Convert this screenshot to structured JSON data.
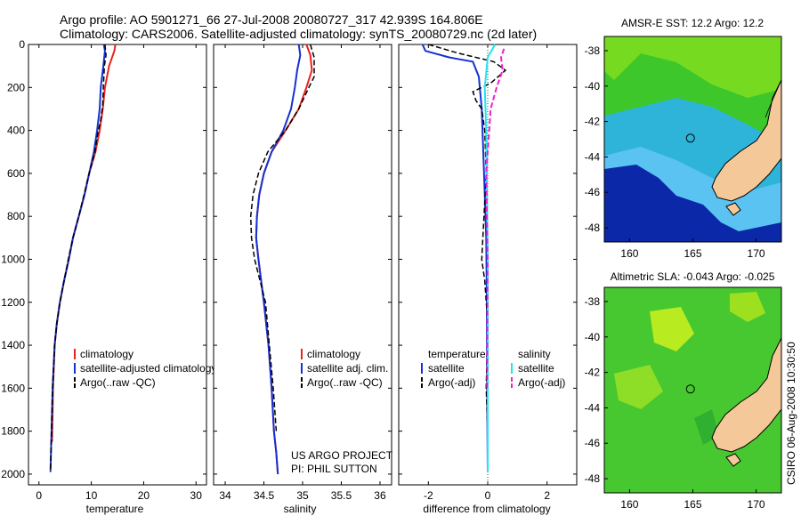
{
  "header": {
    "line1": "Argo profile: AO 5901271_66 27-Jul-2008 20080727_317 42.939S 164.806E",
    "line2": "Climatology: CARS2006. Satellite-adjusted climatology: synTS_20080729.nc (2d later)"
  },
  "colors": {
    "climatology": "#e8231e",
    "satellite": "#1432d2",
    "argo": "#000000",
    "sal_satellite": "#1ee6f0",
    "sal_argo": "#f01ed2",
    "land": "#f5c89a"
  },
  "chart_data": [
    {
      "id": "temperature",
      "type": "line",
      "xlabel": "temperature",
      "ylabel": "",
      "xlim": [
        -2,
        32
      ],
      "ylim": [
        2050,
        0
      ],
      "xticks": [
        0,
        10,
        20,
        30
      ],
      "xtick_labels": [
        "0",
        "10",
        "20",
        "30"
      ],
      "yticks": [
        0,
        200,
        400,
        600,
        800,
        1000,
        1200,
        1400,
        1600,
        1800,
        2000
      ],
      "ytick_labels": [
        "0",
        "200",
        "400",
        "600",
        "800",
        "1000",
        "1200",
        "1400",
        "1600",
        "1800",
        "2000"
      ],
      "legend": [
        "climatology",
        "satellite-adjusted climatology",
        "Argo(..raw -QC)"
      ],
      "legend_placement": "bottom-right",
      "series": [
        {
          "name": "climatology",
          "color_key": "climatology",
          "dash": false,
          "width": 2,
          "x": [
            14.6,
            14.4,
            13.4,
            12.6,
            12.2,
            11.6,
            10.8,
            9.6,
            8.7,
            7.6,
            6.5,
            5.7,
            4.8,
            4.0,
            3.4,
            3.0,
            2.7,
            2.5
          ],
          "y": [
            0,
            30,
            100,
            200,
            300,
            400,
            500,
            600,
            700,
            800,
            900,
            1000,
            1100,
            1200,
            1300,
            1400,
            1600,
            1850
          ]
        },
        {
          "name": "satellite-adjusted climatology",
          "color_key": "satellite",
          "dash": false,
          "width": 2,
          "x": [
            12.4,
            12.6,
            12.3,
            11.8,
            11.6,
            11.1,
            10.5,
            9.6,
            8.7,
            7.6,
            6.5,
            5.7,
            4.8,
            4.0,
            3.4,
            3.0,
            2.6,
            2.4,
            2.2
          ],
          "y": [
            0,
            30,
            100,
            200,
            300,
            400,
            500,
            600,
            700,
            800,
            900,
            1000,
            1100,
            1200,
            1300,
            1400,
            1600,
            1800,
            1990
          ]
        },
        {
          "name": "Argo(..raw -QC)",
          "color_key": "argo",
          "dash": true,
          "width": 1.5,
          "x": [
            12.6,
            12.8,
            12.5,
            12.3,
            12.2,
            11.8,
            11.2,
            10.7,
            9.6,
            8.6,
            7.6,
            6.5,
            5.6,
            4.8,
            4.0,
            3.4,
            3.0,
            2.6,
            2.4,
            2.2
          ],
          "y": [
            0,
            50,
            100,
            200,
            280,
            350,
            420,
            500,
            600,
            700,
            800,
            900,
            1000,
            1100,
            1200,
            1300,
            1400,
            1600,
            1800,
            1990
          ]
        }
      ]
    },
    {
      "id": "salinity",
      "type": "line",
      "xlabel": "salinity",
      "ylabel": "",
      "xlim": [
        33.85,
        36.15
      ],
      "ylim": [
        2050,
        0
      ],
      "xticks": [
        34,
        34.5,
        35,
        35.5,
        36
      ],
      "xtick_labels": [
        "34",
        "34.5",
        "35",
        "35.5",
        "36"
      ],
      "yticks": [
        0,
        200,
        400,
        600,
        800,
        1000,
        1200,
        1400,
        1600,
        1800,
        2000
      ],
      "legend": [
        "climatology",
        "satellite adj. clim.",
        "Argo(..raw -QC)"
      ],
      "legend_placement": "bottom-right",
      "annotations": [
        "US ARGO PROJECT",
        "PI: PHIL SUTTON"
      ],
      "series": [
        {
          "name": "climatology",
          "color_key": "climatology",
          "dash": false,
          "width": 2,
          "x": [
            35.05,
            35.1,
            35.12,
            35.05,
            34.95,
            34.78,
            34.6,
            34.5,
            34.44,
            34.41,
            34.4,
            34.43,
            34.5,
            34.56,
            34.6,
            34.63,
            34.66,
            34.68
          ],
          "y": [
            0,
            50,
            120,
            200,
            300,
            400,
            500,
            600,
            700,
            800,
            900,
            1000,
            1200,
            1400,
            1600,
            1800,
            1900,
            2000
          ]
        },
        {
          "name": "satellite adj. clim.",
          "color_key": "satellite",
          "dash": false,
          "width": 2,
          "x": [
            34.95,
            34.97,
            34.93,
            34.9,
            34.85,
            34.75,
            34.6,
            34.5,
            34.44,
            34.41,
            34.4,
            34.43,
            34.5,
            34.56,
            34.6,
            34.63,
            34.66,
            34.68
          ],
          "y": [
            0,
            50,
            120,
            200,
            300,
            400,
            500,
            600,
            700,
            800,
            900,
            1000,
            1200,
            1400,
            1600,
            1800,
            1900,
            2000
          ]
        },
        {
          "name": "Argo(..raw -QC)",
          "color_key": "argo",
          "dash": true,
          "width": 1.5,
          "x": [
            35.1,
            35.15,
            35.15,
            35.08,
            34.95,
            34.78,
            34.55,
            34.43,
            34.36,
            34.33,
            34.34,
            34.38,
            34.45,
            34.52,
            34.57,
            34.62,
            34.66
          ],
          "y": [
            0,
            60,
            150,
            200,
            300,
            400,
            500,
            600,
            700,
            800,
            900,
            1000,
            1100,
            1200,
            1400,
            1600,
            1800
          ]
        }
      ]
    },
    {
      "id": "difference",
      "type": "line",
      "xlabel": "difference from climatology",
      "ylabel": "",
      "xlim": [
        -3,
        3
      ],
      "ylim": [
        2050,
        0
      ],
      "xticks": [
        -2,
        0,
        2
      ],
      "xtick_labels": [
        "-2",
        "0",
        "2"
      ],
      "yticks": [
        0,
        200,
        400,
        600,
        800,
        1000,
        1200,
        1400,
        1600,
        1800,
        2000
      ],
      "zero_line": true,
      "legend_temperature": {
        "title": "temperature",
        "items": [
          "satellite",
          "Argo(-adj)"
        ]
      },
      "legend_salinity": {
        "title": "salinity",
        "items": [
          "satellite",
          "Argo(-adj)"
        ]
      },
      "series": [
        {
          "name": "temperature satellite",
          "color_key": "satellite",
          "dash": false,
          "width": 2,
          "x": [
            -2.2,
            -2.1,
            -1.3,
            -0.5,
            -0.3,
            -0.2,
            -0.15,
            -0.1,
            -0.05,
            -0.03,
            -0.02,
            0.0
          ],
          "y": [
            0,
            30,
            60,
            80,
            150,
            300,
            500,
            700,
            900,
            1200,
            1600,
            1990
          ]
        },
        {
          "name": "temperature Argo(-adj)",
          "color_key": "argo",
          "dash": true,
          "width": 1.5,
          "x": [
            -2.0,
            -1.0,
            0.2,
            0.6,
            0.1,
            -0.5,
            -0.4,
            -0.2,
            -0.1,
            -0.05,
            -0.2,
            -0.1,
            0.0,
            -0.05,
            0.0
          ],
          "y": [
            0,
            40,
            80,
            120,
            180,
            220,
            260,
            300,
            400,
            600,
            1000,
            1100,
            1300,
            1600,
            1800
          ]
        },
        {
          "name": "salinity satellite",
          "color_key": "sal_satellite",
          "dash": false,
          "width": 2,
          "x": [
            0.25,
            0.0,
            -0.1,
            -0.05,
            0.0,
            0.0
          ],
          "y": [
            0,
            60,
            200,
            400,
            1000,
            1990
          ]
        },
        {
          "name": "salinity Argo(-adj)",
          "color_key": "sal_argo",
          "dash": true,
          "width": 2,
          "x": [
            0.55,
            0.45,
            0.5,
            0.3,
            0.1,
            0.05,
            0.0,
            -0.05,
            0.0,
            -0.02
          ],
          "y": [
            20,
            60,
            120,
            200,
            300,
            400,
            500,
            600,
            1000,
            1600
          ]
        }
      ]
    },
    {
      "id": "sst_map",
      "type": "heatmap",
      "title": "AMSR-E SST: 12.2  Argo: 12.2",
      "xlim": [
        158,
        172
      ],
      "ylim": [
        -48.8,
        -37.2
      ],
      "xticks": [
        160,
        165,
        170
      ],
      "xtick_labels": [
        "160",
        "165",
        "170"
      ],
      "yticks": [
        -38,
        -40,
        -42,
        -44,
        -46,
        -48
      ],
      "ytick_labels": [
        "-38",
        "-40",
        "-42",
        "-44",
        "-46",
        "-48"
      ],
      "marker": {
        "lon": 164.806,
        "lat": -42.939
      }
    },
    {
      "id": "sla_map",
      "type": "heatmap",
      "title": "Altimetric SLA: -0.043  Argo: -0.025",
      "xlim": [
        158,
        172
      ],
      "ylim": [
        -48.8,
        -37.2
      ],
      "xticks": [
        160,
        165,
        170
      ],
      "xtick_labels": [
        "160",
        "165",
        "170"
      ],
      "yticks": [
        -38,
        -40,
        -42,
        -44,
        -46,
        -48
      ],
      "ytick_labels": [
        "-38",
        "-40",
        "-42",
        "-44",
        "-46",
        "-48"
      ],
      "marker": {
        "lon": 164.806,
        "lat": -42.939
      }
    }
  ],
  "credit": "CSIRO 06-Aug-2008 10:30:50"
}
